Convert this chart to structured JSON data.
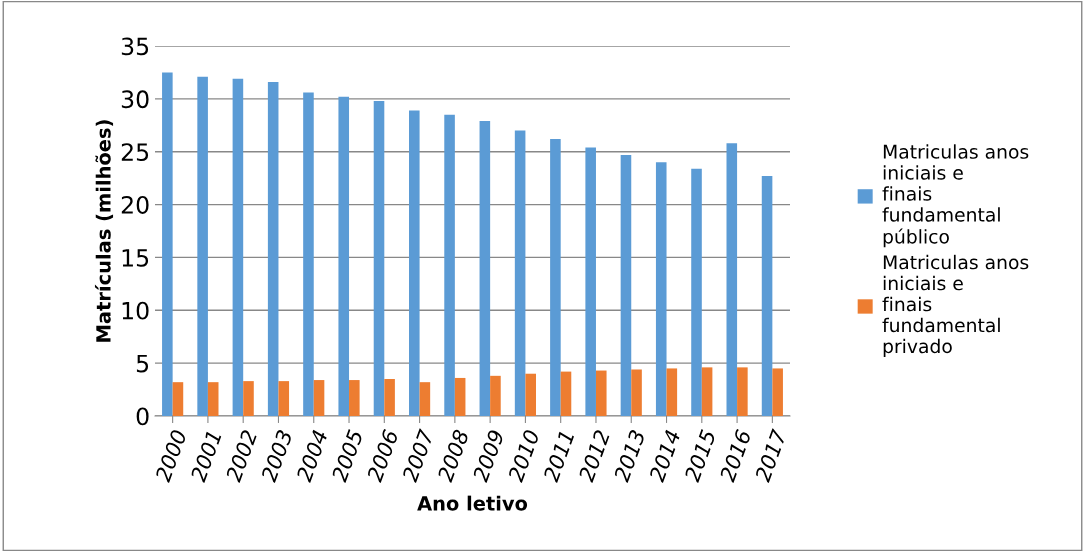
{
  "chart_data": {
    "type": "bar",
    "xlabel": "Ano letivo",
    "ylabel": "Matrículas (milhões)",
    "categories": [
      "2000",
      "2001",
      "2002",
      "2003",
      "2004",
      "2005",
      "2006",
      "2007",
      "2008",
      "2009",
      "2010",
      "2011",
      "2012",
      "2013",
      "2014",
      "2015",
      "2016",
      "2017"
    ],
    "series": [
      {
        "name": "Matriculas anos iniciais e finais fundamental público",
        "color": "#5b9bd5",
        "values": [
          32.5,
          32.1,
          31.9,
          31.6,
          30.6,
          30.2,
          29.8,
          28.9,
          28.5,
          27.9,
          27.0,
          26.2,
          25.4,
          24.7,
          24.0,
          23.4,
          25.8,
          22.7
        ]
      },
      {
        "name": "Matriculas anos iniciais e finais fundamental privado",
        "color": "#ed7d31",
        "values": [
          3.2,
          3.2,
          3.3,
          3.3,
          3.4,
          3.4,
          3.5,
          3.2,
          3.6,
          3.8,
          4.0,
          4.2,
          4.3,
          4.4,
          4.5,
          4.6,
          4.6,
          4.5
        ]
      }
    ],
    "ylim": [
      0,
      35
    ],
    "yticks": [
      0,
      5,
      10,
      15,
      20,
      25,
      30,
      35
    ],
    "grid": "y",
    "legend": "right"
  }
}
